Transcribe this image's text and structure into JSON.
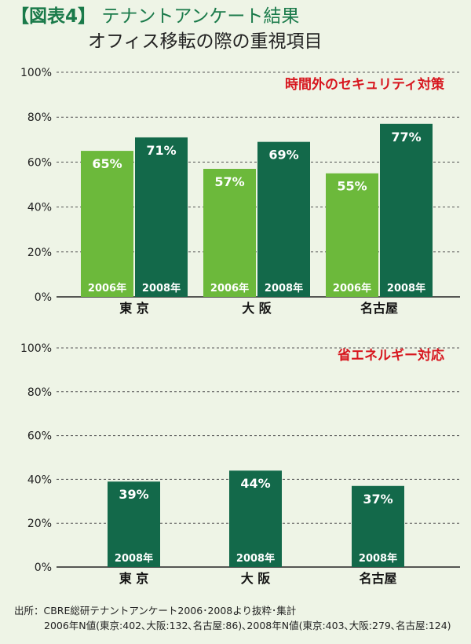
{
  "header": {
    "tag": "【図表4】",
    "title": "テナントアンケート結果",
    "subtitle": "オフィス移転の際の重視項目"
  },
  "colors": {
    "light_green": "#6cb93b",
    "dark_green": "#13694a",
    "accent_red": "#d7161e",
    "title_green": "#1a7a4a",
    "grid": "#555555"
  },
  "chart_data": [
    {
      "type": "bar",
      "title": "時間外のセキュリティ対策",
      "ylim": [
        0,
        100
      ],
      "yticks": [
        "0%",
        "20%",
        "40%",
        "60%",
        "80%",
        "100%"
      ],
      "categories": [
        "東 京",
        "大 阪",
        "名古屋"
      ],
      "series": [
        {
          "name": "2006年",
          "values": [
            65,
            57,
            55
          ],
          "labels": [
            "65%",
            "57%",
            "55%"
          ],
          "color": "#6cb93b"
        },
        {
          "name": "2008年",
          "values": [
            71,
            69,
            77
          ],
          "labels": [
            "71%",
            "69%",
            "77%"
          ],
          "color": "#13694a"
        }
      ]
    },
    {
      "type": "bar",
      "title": "省エネルギー対応",
      "ylim": [
        0,
        100
      ],
      "yticks": [
        "0%",
        "20%",
        "40%",
        "60%",
        "80%",
        "100%"
      ],
      "categories": [
        "東 京",
        "大 阪",
        "名古屋"
      ],
      "series": [
        {
          "name": "2008年",
          "values": [
            39,
            44,
            37
          ],
          "labels": [
            "39%",
            "44%",
            "37%"
          ],
          "color": "#13694a"
        }
      ]
    }
  ],
  "source": {
    "line1": "出所：CBRE総研テナントアンケート2006･2008より抜粋･集計",
    "line2": "2006年N値(東京:402､大阪:132､名古屋:86)､2008年N値(東京:403､大阪:279､名古屋:124)"
  }
}
